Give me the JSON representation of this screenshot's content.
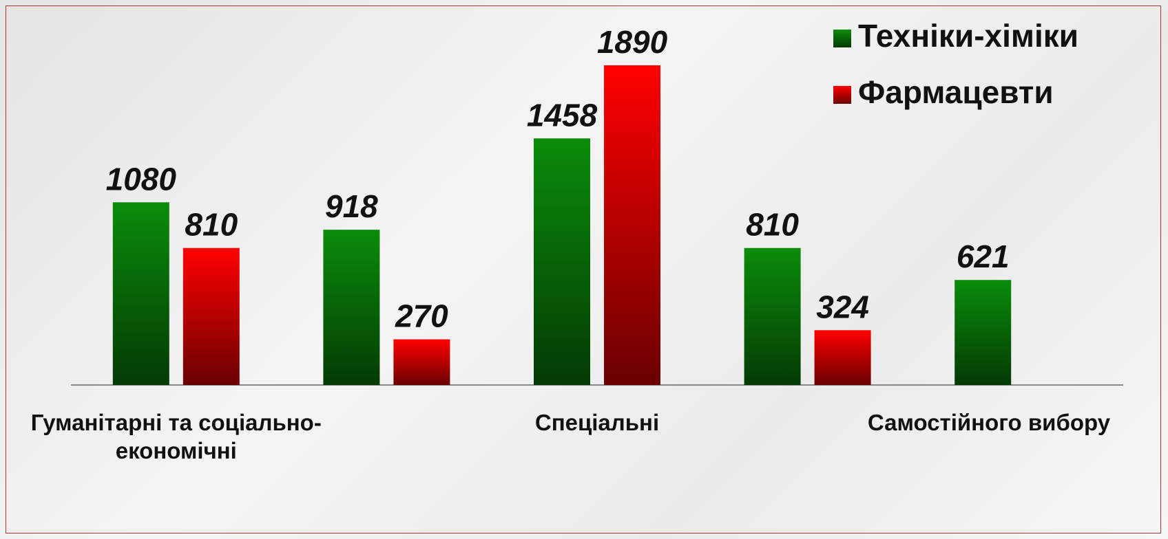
{
  "chart_data": {
    "type": "bar",
    "categories": [
      "Гуманітарні та соціально-економічні",
      null,
      "Спеціальні",
      null,
      "Самостійного вибору"
    ],
    "series": [
      {
        "name": "Техніки-хіміки",
        "color": "#0a8c0a",
        "values": [
          1080,
          918,
          1458,
          810,
          621
        ]
      },
      {
        "name": "Фармацевти",
        "color": "#ff0000",
        "values": [
          810,
          270,
          1890,
          324,
          null
        ]
      }
    ],
    "legend": "top-right"
  }
}
